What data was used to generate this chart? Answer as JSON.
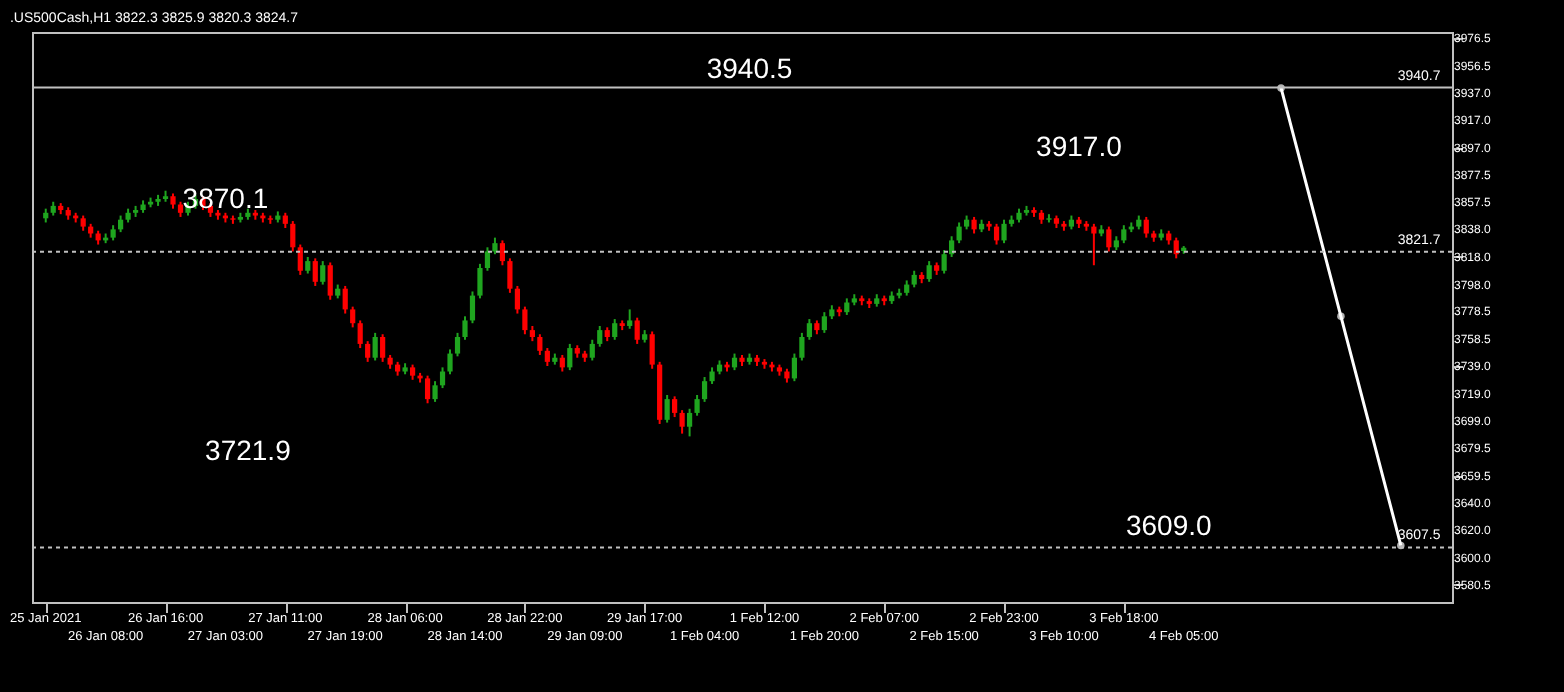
{
  "chart_data": {
    "type": "candlestick",
    "title": ".US500Cash,H1  3822.3 3825.9 3820.3 3824.7",
    "categories": [
      "25 Jan 2021",
      null,
      null,
      null,
      null,
      null,
      null,
      null,
      "26 Jan 08:00",
      null,
      null,
      null,
      null,
      null,
      null,
      null,
      "26 Jan 16:00",
      null,
      null,
      null,
      null,
      null,
      null,
      null,
      "27 Jan 03:00",
      null,
      null,
      null,
      null,
      null,
      null,
      null,
      "27 Jan 11:00",
      null,
      null,
      null,
      null,
      null,
      null,
      null,
      "27 Jan 19:00",
      null,
      null,
      null,
      null,
      null,
      null,
      null,
      "28 Jan 06:00",
      null,
      null,
      null,
      null,
      null,
      null,
      null,
      "28 Jan 14:00",
      null,
      null,
      null,
      null,
      null,
      null,
      null,
      "28 Jan 22:00",
      null,
      null,
      null,
      null,
      null,
      null,
      null,
      "29 Jan 09:00",
      null,
      null,
      null,
      null,
      null,
      null,
      null,
      "29 Jan 17:00",
      null,
      null,
      null,
      null,
      null,
      null,
      null,
      "1 Feb 04:00",
      null,
      null,
      null,
      null,
      null,
      null,
      null,
      "1 Feb 12:00",
      null,
      null,
      null,
      null,
      null,
      null,
      null,
      "1 Feb 20:00",
      null,
      null,
      null,
      null,
      null,
      null,
      null,
      "2 Feb 07:00",
      null,
      null,
      null,
      null,
      null,
      null,
      null,
      "2 Feb 15:00",
      null,
      null,
      null,
      null,
      null,
      null,
      null,
      "2 Feb 23:00",
      null,
      null,
      null,
      null,
      null,
      null,
      null,
      "3 Feb 10:00",
      null,
      null,
      null,
      null,
      null,
      null,
      null,
      "3 Feb 18:00",
      null,
      null,
      null,
      null,
      null,
      null,
      null,
      "4 Feb 05:00",
      null,
      null,
      null,
      null,
      null,
      null,
      null,
      null,
      null,
      null,
      null,
      null,
      null,
      null,
      null,
      null,
      null,
      null,
      null,
      null,
      null,
      null,
      null,
      null,
      null,
      null,
      null,
      null,
      null,
      null,
      null,
      null,
      null,
      null
    ],
    "ohlc": [
      [
        3846,
        3853,
        3843,
        3850
      ],
      [
        3850,
        3858,
        3848,
        3855
      ],
      [
        3855,
        3857,
        3849,
        3852
      ],
      [
        3852,
        3854,
        3845,
        3848
      ],
      [
        3848,
        3850,
        3843,
        3846
      ],
      [
        3846,
        3848,
        3837,
        3840
      ],
      [
        3840,
        3842,
        3832,
        3835
      ],
      [
        3835,
        3837,
        3827,
        3830
      ],
      [
        3830,
        3835,
        3828,
        3832
      ],
      [
        3832,
        3841,
        3830,
        3838
      ],
      [
        3838,
        3848,
        3836,
        3845
      ],
      [
        3845,
        3853,
        3843,
        3850
      ],
      [
        3850,
        3855,
        3847,
        3852
      ],
      [
        3852,
        3859,
        3850,
        3856
      ],
      [
        3856,
        3861,
        3854,
        3858
      ],
      [
        3858,
        3863,
        3855,
        3860
      ],
      [
        3860,
        3866,
        3858,
        3862
      ],
      [
        3862,
        3864,
        3853,
        3856
      ],
      [
        3856,
        3858,
        3847,
        3850
      ],
      [
        3850,
        3858,
        3848,
        3855
      ],
      [
        3855,
        3863,
        3853,
        3860
      ],
      [
        3860,
        3862,
        3852,
        3855
      ],
      [
        3855,
        3857,
        3847,
        3850
      ],
      [
        3850,
        3852,
        3845,
        3848
      ],
      [
        3848,
        3850,
        3843,
        3846
      ],
      [
        3846,
        3848,
        3842,
        3845
      ],
      [
        3845,
        3850,
        3843,
        3847
      ],
      [
        3847,
        3853,
        3845,
        3850
      ],
      [
        3850,
        3852,
        3845,
        3848
      ],
      [
        3848,
        3850,
        3843,
        3846
      ],
      [
        3846,
        3848,
        3842,
        3845
      ],
      [
        3845,
        3851,
        3843,
        3848
      ],
      [
        3848,
        3850,
        3839,
        3842
      ],
      [
        3842,
        3844,
        3822,
        3825
      ],
      [
        3825,
        3827,
        3805,
        3808
      ],
      [
        3808,
        3818,
        3806,
        3815
      ],
      [
        3815,
        3817,
        3797,
        3800
      ],
      [
        3800,
        3815,
        3798,
        3812
      ],
      [
        3812,
        3814,
        3787,
        3790
      ],
      [
        3790,
        3798,
        3788,
        3795
      ],
      [
        3795,
        3797,
        3777,
        3780
      ],
      [
        3780,
        3782,
        3767,
        3770
      ],
      [
        3770,
        3772,
        3752,
        3755
      ],
      [
        3755,
        3757,
        3742,
        3745
      ],
      [
        3745,
        3763,
        3743,
        3760
      ],
      [
        3760,
        3762,
        3742,
        3745
      ],
      [
        3745,
        3747,
        3737,
        3740
      ],
      [
        3740,
        3742,
        3732,
        3735
      ],
      [
        3735,
        3741,
        3733,
        3738
      ],
      [
        3738,
        3740,
        3729,
        3732
      ],
      [
        3732,
        3734,
        3727,
        3730
      ],
      [
        3730,
        3732,
        3712,
        3715
      ],
      [
        3715,
        3728,
        3713,
        3725
      ],
      [
        3725,
        3738,
        3723,
        3735
      ],
      [
        3735,
        3751,
        3733,
        3748
      ],
      [
        3748,
        3763,
        3746,
        3760
      ],
      [
        3760,
        3775,
        3758,
        3772
      ],
      [
        3772,
        3793,
        3770,
        3790
      ],
      [
        3790,
        3813,
        3788,
        3810
      ],
      [
        3810,
        3825,
        3808,
        3822
      ],
      [
        3822,
        3832,
        3820,
        3828
      ],
      [
        3828,
        3830,
        3812,
        3815
      ],
      [
        3815,
        3817,
        3792,
        3795
      ],
      [
        3795,
        3797,
        3777,
        3780
      ],
      [
        3780,
        3782,
        3762,
        3765
      ],
      [
        3765,
        3768,
        3757,
        3760
      ],
      [
        3760,
        3762,
        3747,
        3750
      ],
      [
        3750,
        3752,
        3739,
        3742
      ],
      [
        3742,
        3748,
        3740,
        3745
      ],
      [
        3745,
        3747,
        3735,
        3738
      ],
      [
        3738,
        3755,
        3736,
        3752
      ],
      [
        3752,
        3754,
        3745,
        3748
      ],
      [
        3748,
        3750,
        3742,
        3745
      ],
      [
        3745,
        3758,
        3743,
        3755
      ],
      [
        3755,
        3768,
        3753,
        3765
      ],
      [
        3765,
        3767,
        3757,
        3760
      ],
      [
        3760,
        3773,
        3758,
        3770
      ],
      [
        3770,
        3772,
        3765,
        3768
      ],
      [
        3768,
        3780,
        3766,
        3772
      ],
      [
        3772,
        3774,
        3755,
        3758
      ],
      [
        3758,
        3765,
        3756,
        3762
      ],
      [
        3762,
        3764,
        3737,
        3740
      ],
      [
        3740,
        3742,
        3697,
        3700
      ],
      [
        3700,
        3718,
        3698,
        3715
      ],
      [
        3715,
        3717,
        3702,
        3705
      ],
      [
        3705,
        3707,
        3690,
        3695
      ],
      [
        3695,
        3708,
        3688,
        3705
      ],
      [
        3705,
        3718,
        3703,
        3715
      ],
      [
        3715,
        3731,
        3713,
        3728
      ],
      [
        3728,
        3738,
        3726,
        3735
      ],
      [
        3735,
        3743,
        3733,
        3740
      ],
      [
        3740,
        3742,
        3735,
        3738
      ],
      [
        3738,
        3748,
        3736,
        3745
      ],
      [
        3745,
        3747,
        3739,
        3742
      ],
      [
        3742,
        3748,
        3740,
        3745
      ],
      [
        3745,
        3747,
        3739,
        3742
      ],
      [
        3742,
        3744,
        3737,
        3740
      ],
      [
        3740,
        3742,
        3735,
        3738
      ],
      [
        3738,
        3740,
        3732,
        3735
      ],
      [
        3735,
        3737,
        3727,
        3730
      ],
      [
        3730,
        3748,
        3728,
        3745
      ],
      [
        3745,
        3763,
        3743,
        3760
      ],
      [
        3760,
        3773,
        3758,
        3770
      ],
      [
        3770,
        3772,
        3762,
        3765
      ],
      [
        3765,
        3778,
        3763,
        3775
      ],
      [
        3775,
        3783,
        3773,
        3780
      ],
      [
        3780,
        3782,
        3775,
        3778
      ],
      [
        3778,
        3788,
        3776,
        3785
      ],
      [
        3785,
        3791,
        3783,
        3788
      ],
      [
        3788,
        3790,
        3783,
        3786
      ],
      [
        3786,
        3788,
        3781,
        3784
      ],
      [
        3784,
        3791,
        3782,
        3788
      ],
      [
        3788,
        3790,
        3783,
        3786
      ],
      [
        3786,
        3793,
        3784,
        3790
      ],
      [
        3790,
        3795,
        3788,
        3792
      ],
      [
        3792,
        3801,
        3790,
        3798
      ],
      [
        3798,
        3808,
        3796,
        3805
      ],
      [
        3805,
        3807,
        3799,
        3802
      ],
      [
        3802,
        3815,
        3800,
        3812
      ],
      [
        3812,
        3814,
        3805,
        3808
      ],
      [
        3808,
        3823,
        3806,
        3820
      ],
      [
        3820,
        3833,
        3818,
        3830
      ],
      [
        3830,
        3843,
        3828,
        3840
      ],
      [
        3840,
        3848,
        3838,
        3845
      ],
      [
        3845,
        3847,
        3835,
        3838
      ],
      [
        3838,
        3845,
        3836,
        3842
      ],
      [
        3842,
        3844,
        3837,
        3840
      ],
      [
        3840,
        3842,
        3827,
        3830
      ],
      [
        3830,
        3845,
        3828,
        3842
      ],
      [
        3842,
        3848,
        3840,
        3845
      ],
      [
        3845,
        3853,
        3843,
        3850
      ],
      [
        3850,
        3855,
        3848,
        3852
      ],
      [
        3852,
        3854,
        3847,
        3850
      ],
      [
        3850,
        3852,
        3842,
        3845
      ],
      [
        3845,
        3849,
        3843,
        3846
      ],
      [
        3846,
        3848,
        3839,
        3842
      ],
      [
        3842,
        3844,
        3837,
        3840
      ],
      [
        3840,
        3848,
        3838,
        3845
      ],
      [
        3845,
        3847,
        3839,
        3842
      ],
      [
        3842,
        3844,
        3837,
        3840
      ],
      [
        3840,
        3842,
        3812,
        3835
      ],
      [
        3835,
        3841,
        3833,
        3838
      ],
      [
        3838,
        3840,
        3822,
        3825
      ],
      [
        3825,
        3833,
        3823,
        3830
      ],
      [
        3830,
        3841,
        3828,
        3838
      ],
      [
        3838,
        3843,
        3836,
        3840
      ],
      [
        3840,
        3848,
        3838,
        3845
      ],
      [
        3845,
        3847,
        3832,
        3835
      ],
      [
        3835,
        3837,
        3829,
        3832
      ],
      [
        3832,
        3838,
        3830,
        3835
      ],
      [
        3835,
        3837,
        3827,
        3830
      ],
      [
        3830,
        3832,
        3817,
        3820
      ],
      [
        3822.3,
        3825.9,
        3820.3,
        3824.7
      ],
      null,
      null,
      null,
      null,
      null,
      null,
      null,
      null,
      null,
      null,
      null,
      null,
      null,
      null,
      null,
      null,
      null,
      null,
      null,
      null,
      null,
      null,
      null,
      null,
      null,
      null,
      null,
      null,
      null,
      null,
      null,
      null,
      null,
      null
    ],
    "series": [
      {
        "type": "line",
        "color": "#ffffff",
        "marker": "circle",
        "values": [
          null,
          null,
          null,
          null,
          null,
          null,
          null,
          null,
          null,
          null,
          null,
          null,
          null,
          null,
          null,
          null,
          null,
          null,
          null,
          null,
          null,
          null,
          null,
          null,
          null,
          null,
          null,
          null,
          null,
          null,
          null,
          null,
          null,
          null,
          null,
          null,
          null,
          null,
          null,
          null,
          null,
          null,
          null,
          null,
          null,
          null,
          null,
          null,
          null,
          null,
          null,
          null,
          null,
          null,
          null,
          null,
          null,
          null,
          null,
          null,
          null,
          null,
          null,
          null,
          null,
          null,
          null,
          null,
          null,
          null,
          null,
          null,
          null,
          null,
          null,
          null,
          null,
          null,
          null,
          null,
          null,
          null,
          null,
          null,
          null,
          null,
          null,
          null,
          null,
          null,
          null,
          null,
          null,
          null,
          null,
          null,
          null,
          null,
          null,
          null,
          null,
          null,
          null,
          null,
          null,
          null,
          null,
          null,
          null,
          null,
          null,
          null,
          null,
          null,
          null,
          null,
          null,
          null,
          null,
          null,
          null,
          null,
          null,
          null,
          null,
          null,
          null,
          null,
          null,
          null,
          null,
          null,
          null,
          null,
          null,
          null,
          null,
          null,
          null,
          null,
          null,
          null,
          null,
          null,
          null,
          null,
          null,
          null,
          null,
          null,
          null,
          null,
          null,
          null,
          null,
          null,
          null,
          null,
          null,
          null,
          null,
          null,
          null,
          null,
          null,
          3940.5,
          null,
          null,
          null,
          null,
          null,
          null,
          null,
          3775,
          null,
          null,
          null,
          null,
          null,
          null,
          null,
          3609.0,
          null,
          null,
          null,
          null,
          null
        ]
      }
    ],
    "ylim": [
      3568,
      3981
    ],
    "yticks": [
      3976.5,
      3956.5,
      {
        "value": 3937,
        "label": "3937.0"
      },
      {
        "value": 3917,
        "label": "3917.0"
      },
      {
        "value": 3897,
        "label": "3897.0"
      },
      3877.5,
      3857.5,
      {
        "value": 3838,
        "label": "3838.0"
      },
      {
        "value": 3818,
        "label": "3818.0"
      },
      {
        "value": 3798,
        "label": "3798.0"
      },
      3778.5,
      3758.5,
      {
        "value": 3739,
        "label": "3739.0"
      },
      {
        "value": 3719,
        "label": "3719.0"
      },
      {
        "value": 3699,
        "label": "3699.0"
      },
      3679.5,
      3659.5,
      {
        "value": 3640,
        "label": "3640.0"
      },
      {
        "value": 3620,
        "label": "3620.0"
      },
      {
        "value": 3600,
        "label": "3600.0"
      },
      3580.5
    ],
    "ref_lines": [
      {
        "axis": "y",
        "value": 3940.7,
        "label": "3940.7",
        "color": "#c0c0c0",
        "line_style": "solid"
      },
      {
        "axis": "y",
        "value": 3821.7,
        "label": "3821.7",
        "color": "#c0c0c0",
        "line_style": "dotted"
      },
      {
        "axis": "y",
        "value": 3607.5,
        "label": "3607.5",
        "color": "#c0c0c0",
        "line_style": "dotted"
      }
    ],
    "annotations": [
      {
        "text": "3940.5",
        "y": 3940.5
      },
      "3917.0",
      "3870.1",
      "3721.9",
      {
        "text": "3609.0",
        "y": 3609.0
      }
    ],
    "grid": false
  }
}
